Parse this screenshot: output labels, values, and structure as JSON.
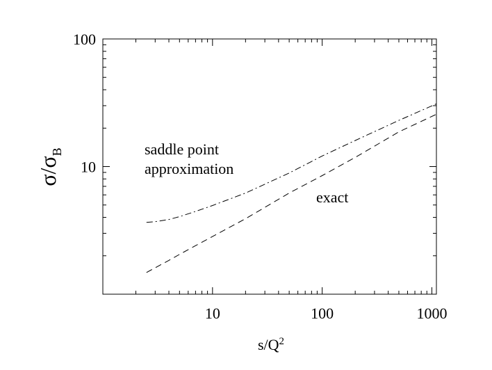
{
  "chart_data": {
    "type": "line",
    "xlabel": {
      "main": "s/Q",
      "sup": "2"
    },
    "ylabel": {
      "main": "σ/σ",
      "sub": "B"
    },
    "xlim": [
      1,
      1100
    ],
    "ylim": [
      1,
      100
    ],
    "xlog": true,
    "ylog": true,
    "xticks": [
      10,
      100,
      1000
    ],
    "yticks": [
      10,
      100
    ],
    "xminorticks": [
      2,
      3,
      4,
      5,
      6,
      7,
      8,
      9,
      20,
      30,
      40,
      50,
      60,
      70,
      80,
      90,
      200,
      300,
      400,
      500,
      600,
      700,
      800,
      900
    ],
    "yminorticks": [
      2,
      3,
      4,
      5,
      6,
      7,
      8,
      9,
      20,
      30,
      40,
      50,
      60,
      70,
      80,
      90
    ],
    "x": [
      2.5,
      3,
      4,
      5,
      7,
      10,
      20,
      50,
      100,
      200,
      500,
      1100
    ],
    "series": [
      {
        "name": "saddle point approximation",
        "color": "#000000",
        "dash": "dashdot",
        "values": [
          3.65,
          3.7,
          3.85,
          4.05,
          4.45,
          4.95,
          6.2,
          8.9,
          12.1,
          16,
          23,
          31
        ]
      },
      {
        "name": "exact",
        "color": "#000000",
        "dash": "dashed",
        "values": [
          1.48,
          1.61,
          1.84,
          2.05,
          2.4,
          2.83,
          3.9,
          6.2,
          8.5,
          11.8,
          18.7,
          25.7
        ]
      }
    ],
    "annotations": [
      "saddle point",
      "approximation",
      "exact"
    ]
  }
}
